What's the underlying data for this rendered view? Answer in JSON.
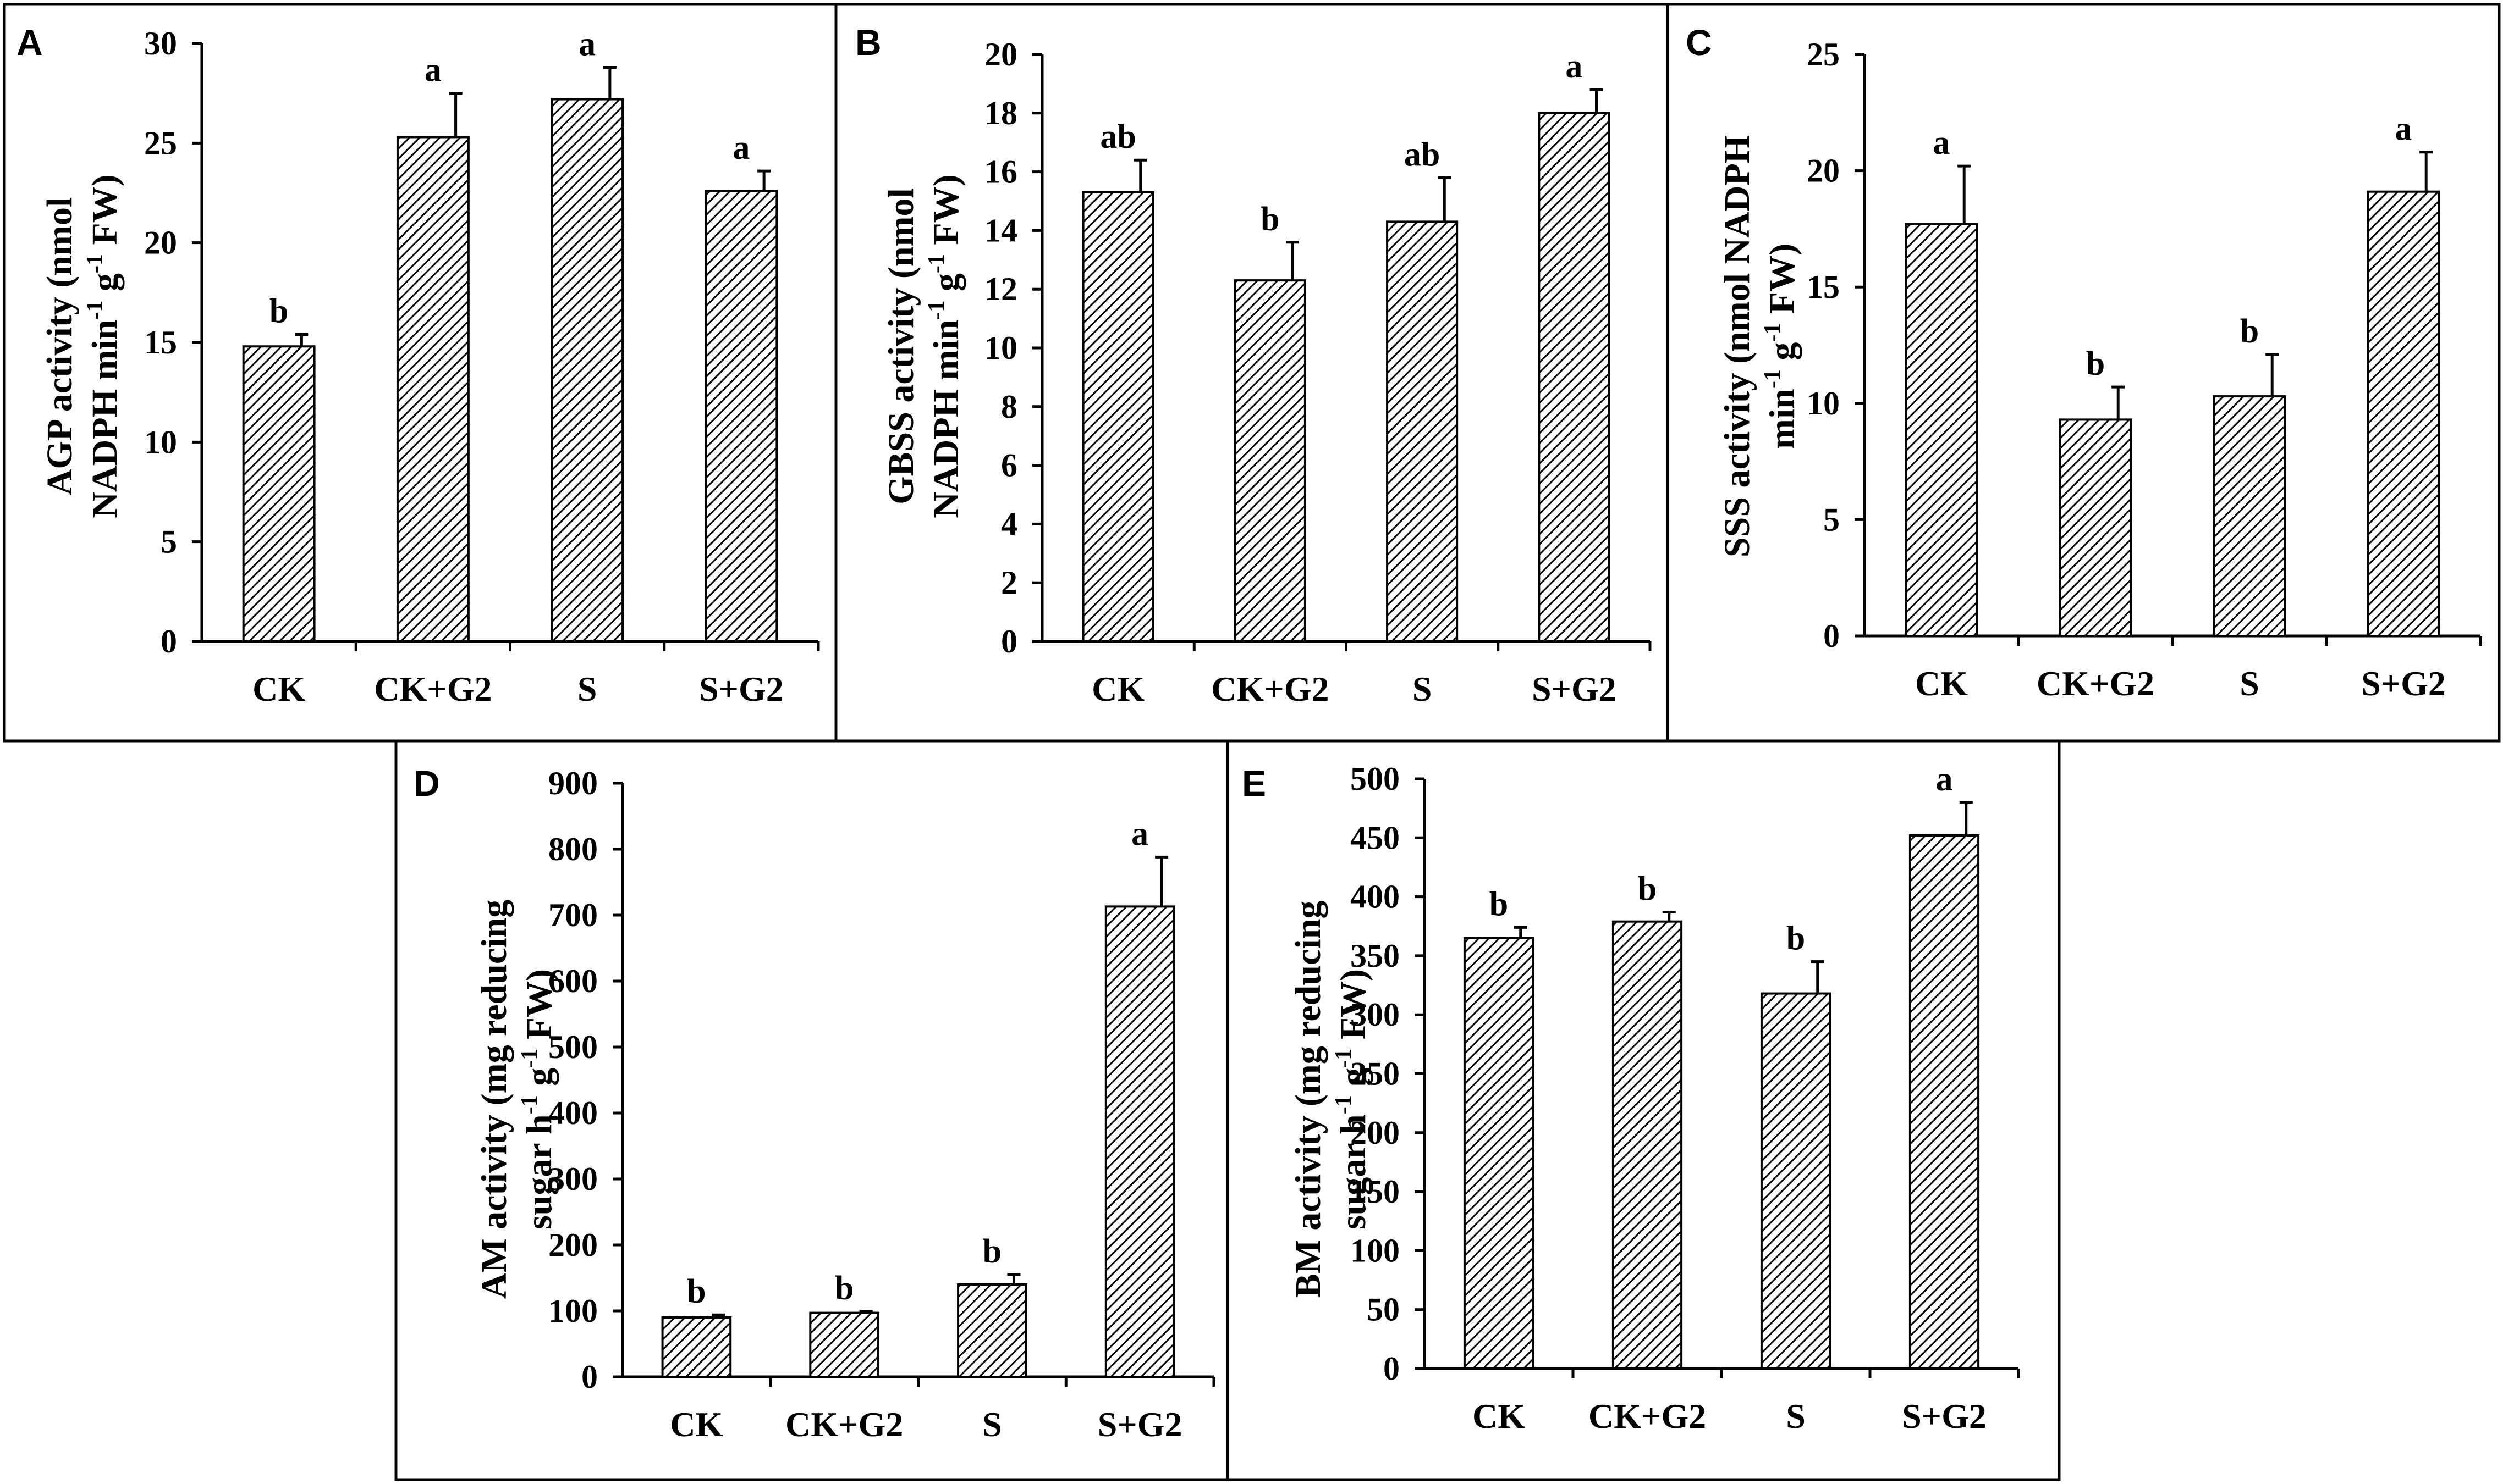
{
  "figure": {
    "panel_colors": {
      "bar_fill": "#ffffff",
      "hatch": "#000000",
      "frame": "#000000"
    }
  },
  "chart_data": [
    {
      "panel": "A",
      "type": "bar",
      "ylabel_line1": "AGP activity (nmol",
      "ylabel_line2_parts": [
        "NADPH min",
        "-1",
        " g",
        "-1",
        " FW)"
      ],
      "categories": [
        "CK",
        "CK+G2",
        "S",
        "S+G2"
      ],
      "values": [
        14.8,
        25.3,
        27.2,
        22.6
      ],
      "errors": [
        0.6,
        2.2,
        1.6,
        1.0
      ],
      "significance": [
        "b",
        "a",
        "a",
        "a"
      ],
      "ylim": [
        0,
        30
      ],
      "yticks": [
        0,
        5,
        10,
        15,
        20,
        25,
        30
      ]
    },
    {
      "panel": "B",
      "type": "bar",
      "ylabel_line1": "GBSS activity (nmol",
      "ylabel_line2_parts": [
        "NADPH min",
        "-1",
        " g",
        "-1",
        " FW)"
      ],
      "categories": [
        "CK",
        "CK+G2",
        "S",
        "S+G2"
      ],
      "values": [
        15.3,
        12.3,
        14.3,
        18.0
      ],
      "errors": [
        1.1,
        1.3,
        1.5,
        0.8
      ],
      "significance": [
        "ab",
        "b",
        "ab",
        "a"
      ],
      "ylim": [
        0,
        20
      ],
      "yticks": [
        0,
        2,
        4,
        6,
        8,
        10,
        12,
        14,
        16,
        18,
        20
      ]
    },
    {
      "panel": "C",
      "type": "bar",
      "ylabel_line1": "SSS activity (nmol NADPH",
      "ylabel_line2_parts": [
        "min",
        "-1",
        " g",
        "-1",
        " FW)"
      ],
      "categories": [
        "CK",
        "CK+G2",
        "S",
        "S+G2"
      ],
      "values": [
        17.7,
        9.3,
        10.3,
        19.1
      ],
      "errors": [
        2.5,
        1.4,
        1.8,
        1.7
      ],
      "significance": [
        "a",
        "b",
        "b",
        "a"
      ],
      "ylim": [
        0,
        25
      ],
      "yticks": [
        0,
        5,
        10,
        15,
        20,
        25
      ]
    },
    {
      "panel": "D",
      "type": "bar",
      "ylabel_line1": "AM activity (mg reducing",
      "ylabel_line2_parts": [
        "sugar h",
        "-1",
        " g",
        "-1",
        " FW)"
      ],
      "categories": [
        "CK",
        "CK+G2",
        "S",
        "S+G2"
      ],
      "values": [
        90,
        97,
        140,
        713
      ],
      "errors": [
        4,
        2,
        15,
        75
      ],
      "significance": [
        "b",
        "b",
        "b",
        "a"
      ],
      "ylim": [
        0,
        900
      ],
      "yticks": [
        0,
        100,
        200,
        300,
        400,
        500,
        600,
        700,
        800,
        900
      ]
    },
    {
      "panel": "E",
      "type": "bar",
      "ylabel_line1": "BM activity (mg reducing",
      "ylabel_line2_parts": [
        "sugar h",
        "-1",
        " g",
        "-1",
        " FW)"
      ],
      "categories": [
        "CK",
        "CK+G2",
        "S",
        "S+G2"
      ],
      "values": [
        365,
        379,
        318,
        452
      ],
      "errors": [
        9,
        8,
        27,
        28
      ],
      "significance": [
        "b",
        "b",
        "b",
        "a"
      ],
      "ylim": [
        0,
        500
      ],
      "yticks": [
        0,
        50,
        100,
        150,
        200,
        250,
        300,
        350,
        400,
        450,
        500
      ]
    }
  ]
}
